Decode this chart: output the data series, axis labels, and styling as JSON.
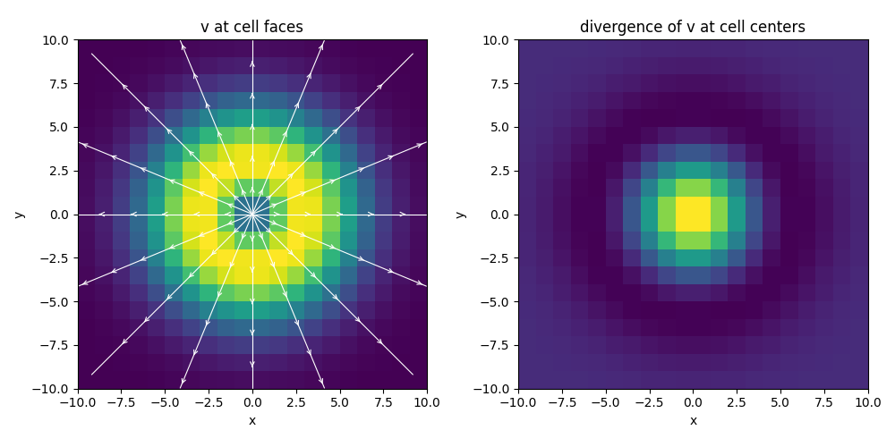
{
  "title_left": "v at cell faces",
  "title_right": "divergence of v at cell centers",
  "xlabel": "x",
  "ylabel": "y",
  "xlim": [
    -10.0,
    10.0
  ],
  "ylim": [
    -10.0,
    10.0
  ],
  "n_cells": 20,
  "x_min": -10.0,
  "x_max": 10.0,
  "y_min": -10.0,
  "y_max": 10.0,
  "figsize": [
    10.0,
    5.0
  ],
  "cmap_left": "viridis",
  "cmap_right": "viridis",
  "arrow_color": "white",
  "sigma": 3.0,
  "n_stream_lines": 16,
  "stream_points": 30
}
